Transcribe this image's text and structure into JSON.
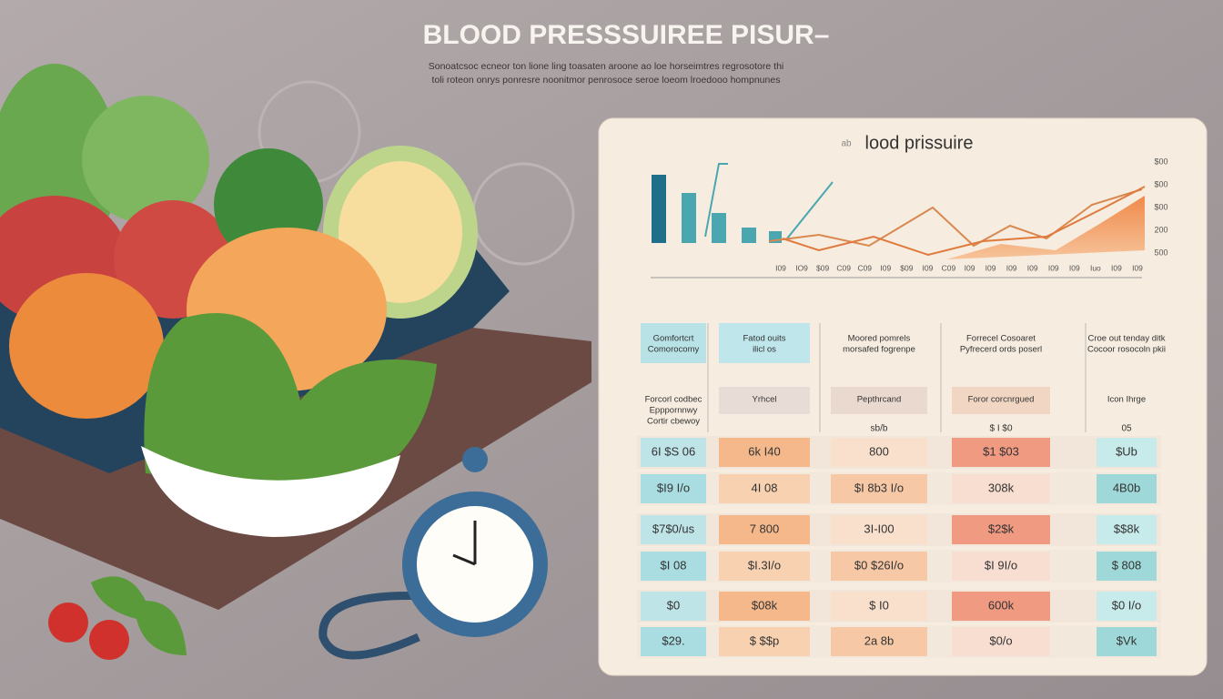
{
  "header": {
    "title": "BLOOD PRESSSUIREE PISUR–",
    "subtitle": [
      "Sonoatcsoc ecneor ton lione ling toasaten aroone ao loe horseimtres regrosotore thi",
      "toli roteon onrys ponresre noonitmor penrosoce seroe loeom lroedooo hompnunes"
    ]
  },
  "panel": {
    "title": "lood prissuire",
    "title_prefix": "ab",
    "y_labels": [
      "$00",
      "$00",
      "$00",
      "200",
      "500"
    ],
    "x_labels": [
      "I09",
      "IO9",
      "$09",
      "C09",
      "C09",
      "I09",
      "$09",
      "I09",
      "C09",
      "I09",
      "I09",
      "I09",
      "I09",
      "I09",
      "I09",
      "Iuo",
      "I09",
      "I09"
    ],
    "columns": [
      [
        "Gomfortcrt",
        "Comorocomy"
      ],
      [
        "Fatod ouits",
        "ilicl os"
      ],
      [
        "Moored pomrels",
        "morsafed fogrenpe"
      ],
      [
        "Forrecel Cosoaret",
        "Pyfrecerd ords poserl"
      ],
      [
        "Croe out tenday ditk",
        "Cocoor rosocoln pkii"
      ]
    ],
    "subheaders": [
      [
        "Forcorl codbec",
        "Epppornnwy",
        "Cortir cbewoy"
      ],
      [
        "Yrhcel"
      ],
      [
        "Pepthrcand"
      ],
      [
        "Foror corcnrgued"
      ],
      [
        "Icon Ihrge"
      ]
    ],
    "small_row": [
      "sb/b",
      "$ I $0",
      "05"
    ],
    "rows": [
      [
        "6I $S 06",
        "6k I40",
        "800",
        "$1 $03",
        "$Ub"
      ],
      [
        "$I9 I/o",
        "4I 08",
        "$I 8b3 I/o",
        "308k",
        "4B0b"
      ],
      [
        "$7$0/us",
        "7 800",
        "3I-I00",
        "$2$k",
        "$$8k"
      ],
      [
        "$I 08",
        "$I.3I/o",
        "$0 $26I/o",
        "$I 9I/o",
        "$ 808"
      ],
      [
        "$0",
        "$08k",
        "$ I0",
        "600k",
        "$0 I/o"
      ],
      [
        "$29.",
        "$ $$p",
        "2a 8b",
        "$0/o",
        "$Vk"
      ]
    ]
  }
}
